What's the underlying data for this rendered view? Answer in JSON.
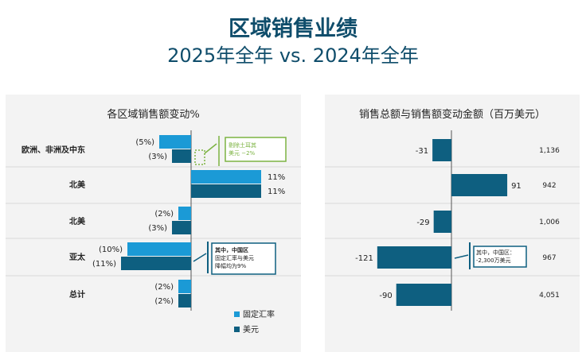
{
  "title": "区域销售业绩",
  "subtitle": "2025年全年 vs. 2024年全年",
  "colors": {
    "fixed": "#1b9ad6",
    "usd": "#0e5f80",
    "note_green": "#7cb342",
    "note_teal": "#0e5f80"
  },
  "chart_data": [
    {
      "type": "bar",
      "orientation": "horizontal",
      "title": "各区域销售额变动%",
      "categories": [
        "欧洲、非洲及中东",
        "北美",
        "北美",
        "亚太",
        "总计"
      ],
      "series": [
        {
          "name": "固定汇率",
          "values": [
            -5,
            11,
            -2,
            -10,
            -2
          ]
        },
        {
          "name": "美元",
          "values": [
            -3,
            11,
            -3,
            -11,
            -2
          ]
        }
      ],
      "labels": [
        [
          "(5%)",
          "(3%)"
        ],
        [
          "11%",
          "11%"
        ],
        [
          "(2%)",
          "(3%)"
        ],
        [
          "(10%)",
          "(11%)"
        ],
        [
          "(2%)",
          "(2%)"
        ]
      ],
      "legend": [
        "固定汇率",
        "美元"
      ],
      "legend_position": "bottom"
    },
    {
      "type": "bar",
      "orientation": "horizontal",
      "title": "销售总额与销售额变动金额（百万美元）",
      "categories": [
        "欧洲、非洲及中东",
        "北美",
        "北美",
        "亚太",
        "总计"
      ],
      "values": [
        -31,
        91,
        -29,
        -121,
        -90
      ],
      "totals": [
        "1,136",
        "942",
        "1,006",
        "967",
        "4,051"
      ]
    }
  ],
  "annotations": {
    "emea": [
      "剔除土耳其",
      "美元 −2%"
    ],
    "apac_pct": [
      "其中，中国区",
      "固定汇率与美元",
      "降幅均为9%"
    ],
    "apac_amt": [
      "其中，中国区：",
      "-2,300万美元"
    ]
  }
}
